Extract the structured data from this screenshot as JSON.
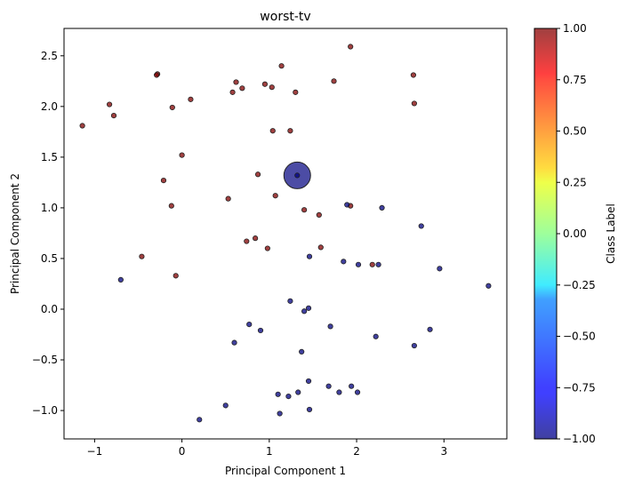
{
  "chart_data": {
    "type": "scatter",
    "title": "worst-tv",
    "xlabel": "Principal Component 1",
    "ylabel": "Principal Component 2",
    "xlim": [
      -1.35,
      3.72
    ],
    "ylim": [
      -1.28,
      2.77
    ],
    "xticks": [
      -1,
      0,
      1,
      2,
      3
    ],
    "xtick_labels": [
      "−1",
      "0",
      "1",
      "2",
      "3"
    ],
    "yticks": [
      -1.0,
      -0.5,
      0.0,
      0.5,
      1.0,
      1.5,
      2.0,
      2.5
    ],
    "ytick_labels": [
      "−1.0",
      "−0.5",
      "0.0",
      "0.5",
      "1.0",
      "1.5",
      "2.0",
      "2.5"
    ],
    "grid": false,
    "colormap": "jet",
    "colorbar": {
      "label": "Class Label",
      "range": [
        -1.0,
        1.0
      ],
      "ticks": [
        1.0,
        0.75,
        0.5,
        0.25,
        0.0,
        -0.25,
        -0.5,
        -0.75,
        -1.0
      ],
      "tick_labels": [
        "1.00",
        "0.75",
        "0.50",
        "0.25",
        "0.00",
        "−0.25",
        "−0.50",
        "−0.75",
        "−1.00"
      ]
    },
    "colors": {
      "class_pos": "#800000",
      "class_neg": "#00007f",
      "marker_edge": "#222222"
    },
    "highlight": {
      "x": 1.32,
      "y": 1.32,
      "label": -1
    },
    "series": [
      {
        "class_label": 1,
        "points": [
          [
            1.93,
            2.59
          ],
          [
            -0.28,
            2.32
          ],
          [
            -0.29,
            2.31
          ],
          [
            1.14,
            2.4
          ],
          [
            0.62,
            2.24
          ],
          [
            0.95,
            2.22
          ],
          [
            1.03,
            2.19
          ],
          [
            0.69,
            2.18
          ],
          [
            0.58,
            2.14
          ],
          [
            1.3,
            2.14
          ],
          [
            1.74,
            2.25
          ],
          [
            2.65,
            2.31
          ],
          [
            0.1,
            2.07
          ],
          [
            -0.83,
            2.02
          ],
          [
            -0.11,
            1.99
          ],
          [
            2.66,
            2.03
          ],
          [
            -0.78,
            1.91
          ],
          [
            -1.14,
            1.81
          ],
          [
            1.04,
            1.76
          ],
          [
            1.24,
            1.76
          ],
          [
            0.0,
            1.52
          ],
          [
            0.87,
            1.33
          ],
          [
            -0.21,
            1.27
          ],
          [
            1.07,
            1.12
          ],
          [
            0.53,
            1.09
          ],
          [
            -0.12,
            1.02
          ],
          [
            1.93,
            1.02
          ],
          [
            1.4,
            0.98
          ],
          [
            1.57,
            0.93
          ],
          [
            0.84,
            0.7
          ],
          [
            0.74,
            0.67
          ],
          [
            1.59,
            0.61
          ],
          [
            0.98,
            0.6
          ],
          [
            -0.46,
            0.52
          ],
          [
            2.18,
            0.44
          ],
          [
            -0.07,
            0.33
          ]
        ]
      },
      {
        "class_label": -1,
        "points": [
          [
            1.89,
            1.03
          ],
          [
            2.29,
            1.0
          ],
          [
            2.74,
            0.82
          ],
          [
            1.46,
            0.52
          ],
          [
            1.85,
            0.47
          ],
          [
            2.02,
            0.44
          ],
          [
            2.25,
            0.44
          ],
          [
            2.95,
            0.4
          ],
          [
            -0.7,
            0.29
          ],
          [
            3.51,
            0.23
          ],
          [
            1.24,
            0.08
          ],
          [
            1.45,
            0.01
          ],
          [
            1.4,
            -0.02
          ],
          [
            0.77,
            -0.15
          ],
          [
            0.9,
            -0.21
          ],
          [
            1.7,
            -0.17
          ],
          [
            2.84,
            -0.2
          ],
          [
            2.22,
            -0.27
          ],
          [
            0.6,
            -0.33
          ],
          [
            2.66,
            -0.36
          ],
          [
            1.37,
            -0.42
          ],
          [
            1.45,
            -0.71
          ],
          [
            1.68,
            -0.76
          ],
          [
            1.94,
            -0.76
          ],
          [
            1.33,
            -0.82
          ],
          [
            1.8,
            -0.82
          ],
          [
            2.01,
            -0.82
          ],
          [
            1.1,
            -0.84
          ],
          [
            1.22,
            -0.86
          ],
          [
            0.5,
            -0.95
          ],
          [
            1.46,
            -0.99
          ],
          [
            1.12,
            -1.03
          ],
          [
            0.2,
            -1.09
          ],
          [
            1.32,
            1.32
          ]
        ]
      }
    ]
  }
}
